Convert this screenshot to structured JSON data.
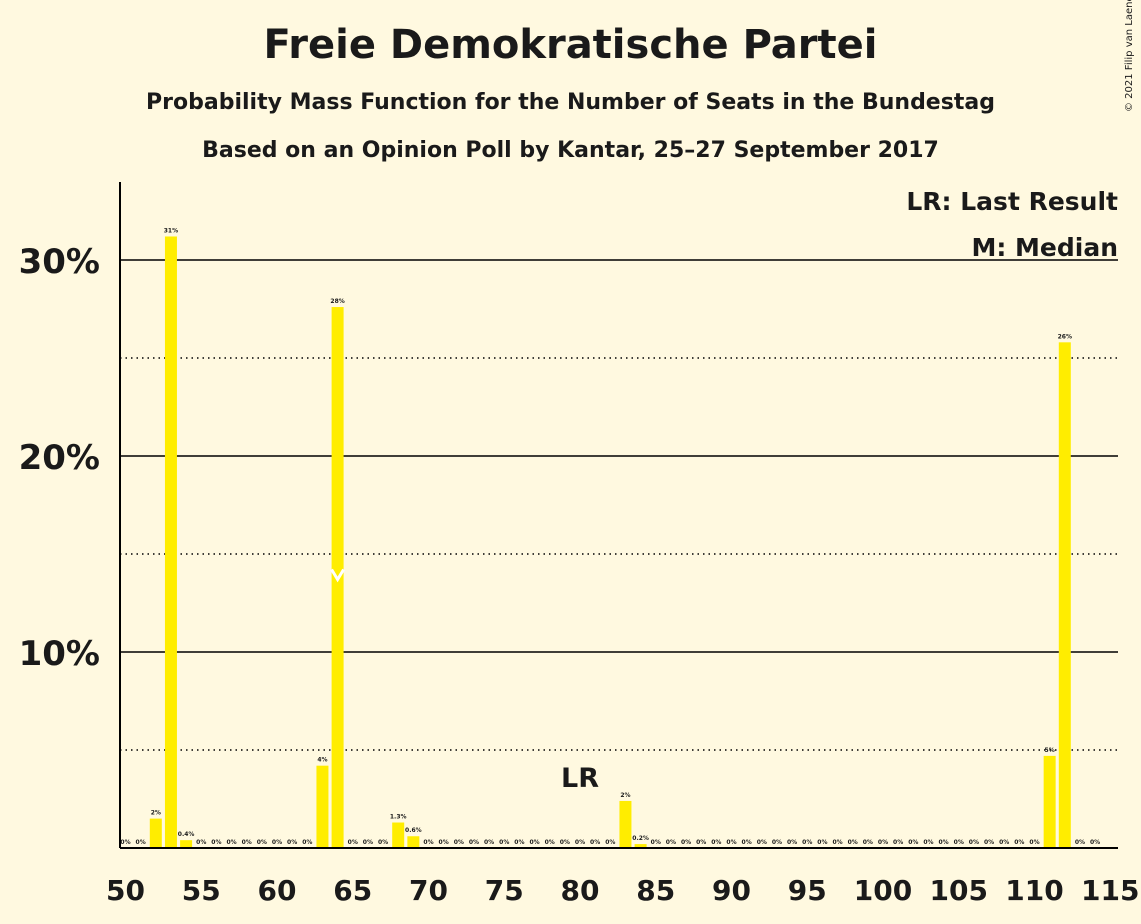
{
  "title": "Freie Demokratische Partei",
  "subtitle1": "Probability Mass Function for the Number of Seats in the Bundestag",
  "subtitle2": "Based on an Opinion Poll by Kantar, 25–27 September 2017",
  "copyright": "© 2021 Filip van Laenen",
  "legend": {
    "lr": "LR: Last Result",
    "m": "M: Median"
  },
  "colors": {
    "bar": "#FFED00",
    "background": "#FFF9E0",
    "axis": "#000000"
  },
  "chart_data": {
    "type": "bar",
    "title": "Freie Demokratische Partei",
    "xlabel": "",
    "ylabel": "",
    "x": [
      50,
      51,
      52,
      53,
      54,
      55,
      56,
      57,
      58,
      59,
      60,
      61,
      62,
      63,
      64,
      65,
      66,
      67,
      68,
      69,
      70,
      71,
      72,
      73,
      74,
      75,
      76,
      77,
      78,
      79,
      80,
      81,
      82,
      83,
      84,
      85,
      86,
      87,
      88,
      89,
      90,
      91,
      92,
      93,
      94,
      95,
      96,
      97,
      98,
      99,
      100,
      101,
      102,
      103,
      104,
      105,
      106,
      107,
      108,
      109,
      110,
      111,
      112,
      113,
      114
    ],
    "values": [
      0,
      0,
      1.5,
      31.2,
      0.4,
      0,
      0,
      0,
      0,
      0,
      0,
      0,
      0,
      4.2,
      27.6,
      0,
      0,
      0,
      1.3,
      0.6,
      0,
      0,
      0,
      0,
      0,
      0,
      0,
      0,
      0,
      0,
      0,
      0,
      0,
      2.4,
      0.2,
      0,
      0,
      0,
      0,
      0,
      0,
      0,
      0,
      0,
      0,
      0,
      0,
      0,
      0,
      0,
      0,
      0,
      0,
      0,
      0,
      0,
      0,
      0,
      0,
      0,
      0,
      4.7,
      25.8,
      0,
      0
    ],
    "labels": [
      "0%",
      "0%",
      "2%",
      "31%",
      "0.4%",
      "0%",
      "0%",
      "0%",
      "0%",
      "0%",
      "0%",
      "0%",
      "0%",
      "4%",
      "28%",
      "0%",
      "0%",
      "0%",
      "1.3%",
      "0.6%",
      "0%",
      "0%",
      "0%",
      "0%",
      "0%",
      "0%",
      "0%",
      "0%",
      "0%",
      "0%",
      "0%",
      "0%",
      "0%",
      "2%",
      "0.2%",
      "0%",
      "0%",
      "0%",
      "0%",
      "0%",
      "0%",
      "0%",
      "0%",
      "0%",
      "0%",
      "0%",
      "0%",
      "0%",
      "0%",
      "0%",
      "0%",
      "0%",
      "0%",
      "0%",
      "0%",
      "0%",
      "0%",
      "0%",
      "0%",
      "0%",
      "0%",
      "5%",
      "26%",
      "0%",
      "0%"
    ],
    "ylim": [
      0,
      34
    ],
    "y_ticks": [
      10,
      20,
      30
    ],
    "y_tick_labels": [
      "10%",
      "20%",
      "30%"
    ],
    "dotted_lines": [
      5,
      15,
      25
    ],
    "x_ticks": [
      50,
      55,
      60,
      65,
      70,
      75,
      80,
      85,
      90,
      95,
      100,
      105,
      110,
      115
    ],
    "x_tick_labels": [
      "50",
      "55",
      "60",
      "65",
      "70",
      "75",
      "80",
      "85",
      "90",
      "95",
      "100",
      "105",
      "110",
      "115"
    ],
    "last_result": {
      "seat": 80,
      "label": "LR"
    },
    "median": {
      "seat": 64,
      "label": "M"
    },
    "grid": true,
    "legend_position": "top-right"
  }
}
